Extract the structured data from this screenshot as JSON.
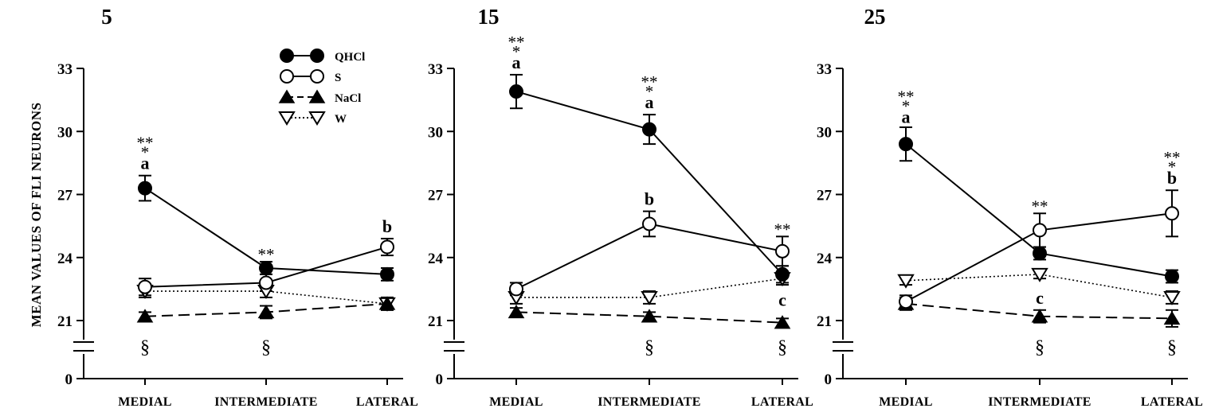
{
  "chart_data": [
    {
      "type": "line",
      "title": "5",
      "ylabel": "MEAN VALUES OF FLI NEURONS",
      "xlabel": "",
      "categories": [
        "MEDIAL",
        "INTERMEDIATE",
        "LATERAL"
      ],
      "y_ticks": [
        0,
        21,
        24,
        27,
        30,
        33
      ],
      "y_axis_break": [
        0,
        21
      ],
      "ylim": [
        21,
        33
      ],
      "grid": false,
      "legend": "top-center",
      "series": [
        {
          "name": "QHCl",
          "marker": "filled-circle",
          "line": "solid",
          "values": [
            27.3,
            23.5,
            23.2
          ],
          "errors": [
            0.6,
            0.3,
            0.3
          ]
        },
        {
          "name": "S",
          "marker": "open-circle",
          "line": "solid",
          "values": [
            22.6,
            22.8,
            24.5
          ],
          "errors": [
            0.4,
            0.4,
            0.4
          ]
        },
        {
          "name": "NaCl",
          "marker": "filled-triangle",
          "line": "dashed",
          "values": [
            21.2,
            21.4,
            21.8
          ],
          "errors": [
            0.2,
            0.3,
            0.3
          ]
        },
        {
          "name": "W",
          "marker": "open-triangle-down",
          "line": "dotted",
          "values": [
            22.4,
            22.4,
            21.8
          ],
          "errors": [
            0.3,
            0.3,
            0.3
          ]
        }
      ],
      "annotations": [
        {
          "category": "MEDIAL",
          "labels": [
            "**",
            "*",
            "a"
          ],
          "value": 27.9
        },
        {
          "category": "INTERMEDIATE",
          "labels": [
            "**"
          ],
          "value": 23.8
        },
        {
          "category": "LATERAL",
          "labels": [
            "b"
          ],
          "value": 24.9
        },
        {
          "category": "MEDIAL",
          "labels": [
            "§"
          ],
          "below": true
        },
        {
          "category": "INTERMEDIATE",
          "labels": [
            "§"
          ],
          "below": true
        }
      ]
    },
    {
      "type": "line",
      "title": "15",
      "ylabel": "",
      "xlabel": "",
      "categories": [
        "MEDIAL",
        "INTERMEDIATE",
        "LATERAL"
      ],
      "y_ticks": [
        0,
        21,
        24,
        27,
        30,
        33
      ],
      "y_axis_break": [
        0,
        21
      ],
      "ylim": [
        21,
        33
      ],
      "grid": false,
      "series": [
        {
          "name": "QHCl",
          "marker": "filled-circle",
          "line": "solid",
          "values": [
            31.9,
            30.1,
            23.2
          ],
          "errors": [
            0.8,
            0.7,
            0.4
          ]
        },
        {
          "name": "S",
          "marker": "open-circle",
          "line": "solid",
          "values": [
            22.5,
            25.6,
            24.3
          ],
          "errors": [
            0.3,
            0.6,
            0.7
          ]
        },
        {
          "name": "NaCl",
          "marker": "filled-triangle",
          "line": "dashed",
          "values": [
            21.4,
            21.2,
            20.9
          ],
          "errors": [
            0.2,
            0.2,
            0.2
          ]
        },
        {
          "name": "W",
          "marker": "open-triangle-down",
          "line": "dotted",
          "values": [
            22.1,
            22.1,
            23.0
          ],
          "errors": [
            0.3,
            0.3,
            0.3
          ]
        }
      ],
      "annotations": [
        {
          "category": "MEDIAL",
          "labels": [
            "**",
            "*",
            "a"
          ],
          "value": 32.7
        },
        {
          "category": "INTERMEDIATE",
          "labels": [
            "**",
            "*",
            "a"
          ],
          "value": 30.8
        },
        {
          "category": "INTERMEDIATE",
          "labels": [
            "b"
          ],
          "value": 26.2
        },
        {
          "category": "LATERAL",
          "labels": [
            "**"
          ],
          "value": 25.0
        },
        {
          "category": "LATERAL",
          "labels": [
            "c"
          ],
          "value": 21.4
        },
        {
          "category": "INTERMEDIATE",
          "labels": [
            "§"
          ],
          "below": true
        },
        {
          "category": "LATERAL",
          "labels": [
            "§"
          ],
          "below": true
        }
      ]
    },
    {
      "type": "line",
      "title": "25",
      "ylabel": "",
      "xlabel": "",
      "categories": [
        "MEDIAL",
        "INTERMEDIATE",
        "LATERAL"
      ],
      "y_ticks": [
        0,
        21,
        24,
        27,
        30,
        33
      ],
      "y_axis_break": [
        0,
        21
      ],
      "ylim": [
        21,
        33
      ],
      "grid": false,
      "series": [
        {
          "name": "QHCl",
          "marker": "filled-circle",
          "line": "solid",
          "values": [
            29.4,
            24.2,
            23.1
          ],
          "errors": [
            0.8,
            0.3,
            0.3
          ]
        },
        {
          "name": "S",
          "marker": "open-circle",
          "line": "solid",
          "values": [
            21.9,
            25.3,
            26.1
          ],
          "errors": [
            0.3,
            0.8,
            1.1
          ]
        },
        {
          "name": "NaCl",
          "marker": "filled-triangle",
          "line": "dashed",
          "values": [
            21.8,
            21.2,
            21.1
          ],
          "errors": [
            0.3,
            0.3,
            0.4
          ]
        },
        {
          "name": "W",
          "marker": "open-triangle-down",
          "line": "dotted",
          "values": [
            22.9,
            23.2,
            22.1
          ],
          "errors": [
            0.2,
            0.2,
            0.3
          ]
        }
      ],
      "annotations": [
        {
          "category": "MEDIAL",
          "labels": [
            "**",
            "*",
            "a"
          ],
          "value": 30.1
        },
        {
          "category": "INTERMEDIATE",
          "labels": [
            "**"
          ],
          "value": 26.1
        },
        {
          "category": "INTERMEDIATE",
          "labels": [
            "c"
          ],
          "value": 21.5
        },
        {
          "category": "LATERAL",
          "labels": [
            "**",
            "*",
            "b"
          ],
          "value": 27.2
        },
        {
          "category": "INTERMEDIATE",
          "labels": [
            "§"
          ],
          "below": true
        },
        {
          "category": "LATERAL",
          "labels": [
            "§"
          ],
          "below": true
        }
      ]
    }
  ]
}
